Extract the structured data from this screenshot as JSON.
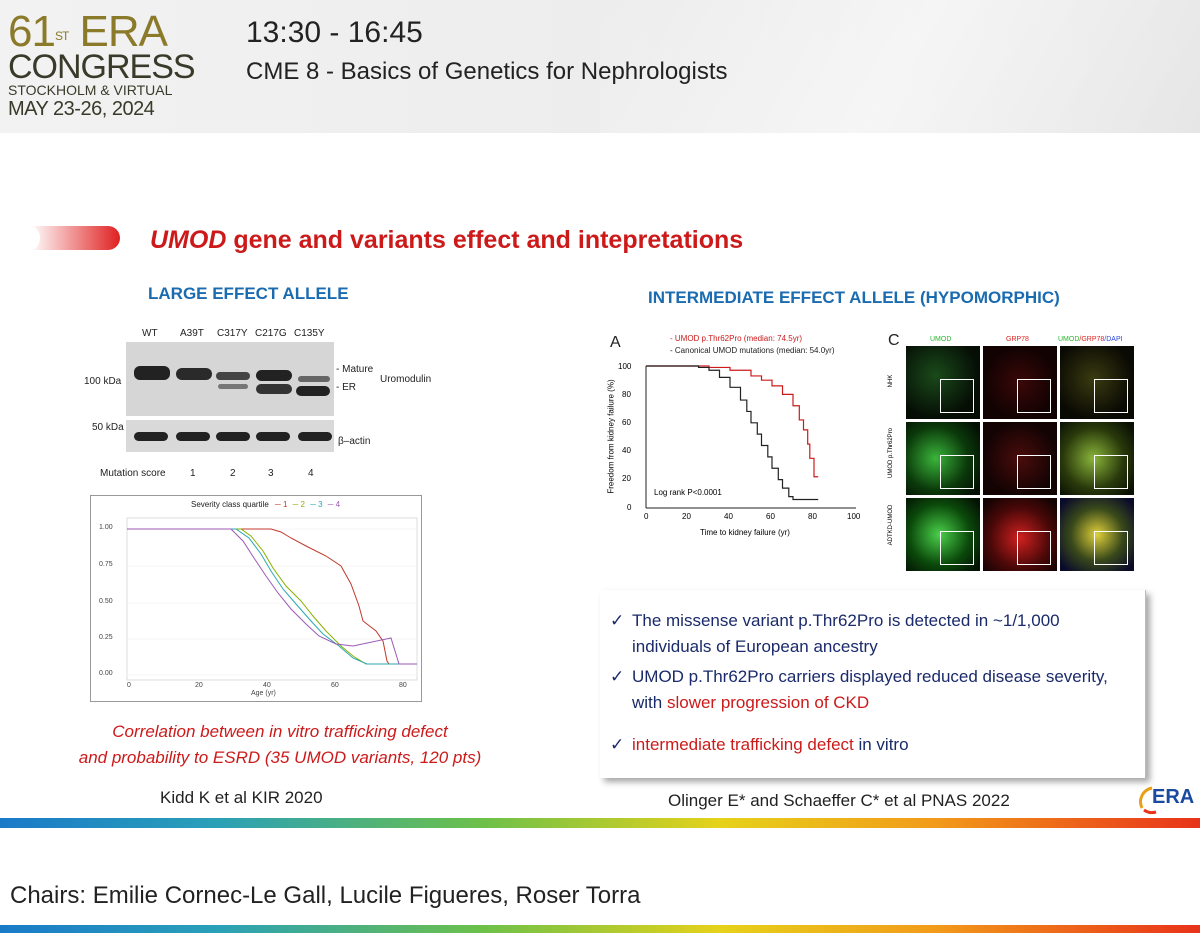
{
  "header": {
    "logo": {
      "num": "61",
      "sup": "ST",
      "era": "ERA",
      "congress": "CONGRESS",
      "location": "STOCKHOLM & VIRTUAL",
      "date": "MAY 23-26, 2024"
    },
    "time": "13:30 - 16:45",
    "session": "CME 8 - Basics of Genetics for Nephrologists"
  },
  "slide": {
    "title_italic": "UMOD",
    "title_rest": " gene and variants effect and intepretations",
    "left": {
      "subtitle": "LARGE EFFECT ALLELE",
      "blot": {
        "lanes": [
          "WT",
          "A39T",
          "C317Y",
          "C217G",
          "C135Y"
        ],
        "kda_100": "100 kDa",
        "kda_50": "50 kDa",
        "mature": "- Mature",
        "er": "- ER",
        "uromodulin": "Uromodulin",
        "actin": "β–actin",
        "score_label": "Mutation score",
        "scores": [
          "1",
          "2",
          "3",
          "4"
        ]
      },
      "km_chart": {
        "legend_title": "Severity class quartile",
        "legend": [
          "1",
          "2",
          "3",
          "4"
        ],
        "y_ticks": [
          "1.00",
          "0.75",
          "0.50",
          "0.25",
          "0.00"
        ],
        "x_ticks": [
          "0",
          "20",
          "40",
          "60",
          "80"
        ],
        "xlabel": "Age (yr)"
      },
      "caption_l1": "Correlation between in vitro trafficking defect",
      "caption_l2": "and probability to ESRD (35 UMOD variants, 120 pts)",
      "reference": "Kidd K et al KIR 2020"
    },
    "right": {
      "subtitle": "INTERMEDIATE EFFECT ALLELE (HYPOMORPHIC)",
      "panel_a": {
        "letter": "A",
        "legend_1": "UMOD p.Thr62Pro (median: 74.5yr)",
        "legend_2": "Canonical UMOD mutations (median: 54.0yr)",
        "ylabel": "Freedom from kidney failure (%)",
        "xlabel": "Time to kidney failure (yr)",
        "y_ticks": [
          "100",
          "80",
          "60",
          "40",
          "20",
          "0"
        ],
        "x_ticks": [
          "0",
          "20",
          "40",
          "60",
          "80",
          "100"
        ],
        "logrank": "Log rank P<0.0001"
      },
      "panel_c": {
        "letter": "C",
        "col1": "UMOD",
        "col2": "GRP78",
        "col3a": "UMOD",
        "col3b": "/GRP78",
        "col3c": "/DAPI",
        "row1": "NHK",
        "row2": "UMOD p.Thr62Pro",
        "row3": "ADTKD-UMOD"
      },
      "bullets": {
        "b1": "The missense variant p.Thr62Pro is detected in ~1/1,000 individuals of European ancestry",
        "b2_plain": "UMOD p.Thr62Pro carriers displayed reduced disease severity, with ",
        "b2_red": "slower progression of CKD",
        "b3_red": "intermediate trafficking defect",
        "b3_plain": " in vitro",
        "check": "✓"
      },
      "reference": "Olinger E* and Schaeffer C* et al PNAS 2022",
      "era_logo": "ERA"
    }
  },
  "footer": {
    "chairs": "Chairs: Emilie Cornec-Le Gall, Lucile Figueres, Roser Torra"
  },
  "colors": {
    "accent_red": "#cc1a1a",
    "accent_blue": "#1a6bb0",
    "gold": "#8a7a2a"
  },
  "km_data": {
    "x_range": [
      0,
      100
    ],
    "y_range": [
      0,
      100
    ],
    "thr62pro": [
      [
        0,
        100
      ],
      [
        20,
        100
      ],
      [
        30,
        99
      ],
      [
        40,
        97
      ],
      [
        50,
        93
      ],
      [
        55,
        90
      ],
      [
        60,
        86
      ],
      [
        65,
        80
      ],
      [
        70,
        72
      ],
      [
        73,
        62
      ],
      [
        75,
        55
      ],
      [
        77,
        45
      ],
      [
        78,
        35
      ],
      [
        80,
        22
      ],
      [
        82,
        22
      ]
    ],
    "canonical": [
      [
        0,
        100
      ],
      [
        25,
        99
      ],
      [
        30,
        97
      ],
      [
        35,
        92
      ],
      [
        40,
        85
      ],
      [
        45,
        76
      ],
      [
        48,
        68
      ],
      [
        50,
        60
      ],
      [
        53,
        52
      ],
      [
        55,
        44
      ],
      [
        58,
        36
      ],
      [
        60,
        28
      ],
      [
        63,
        20
      ],
      [
        65,
        14
      ],
      [
        68,
        8
      ],
      [
        70,
        6
      ],
      [
        82,
        6
      ]
    ]
  }
}
